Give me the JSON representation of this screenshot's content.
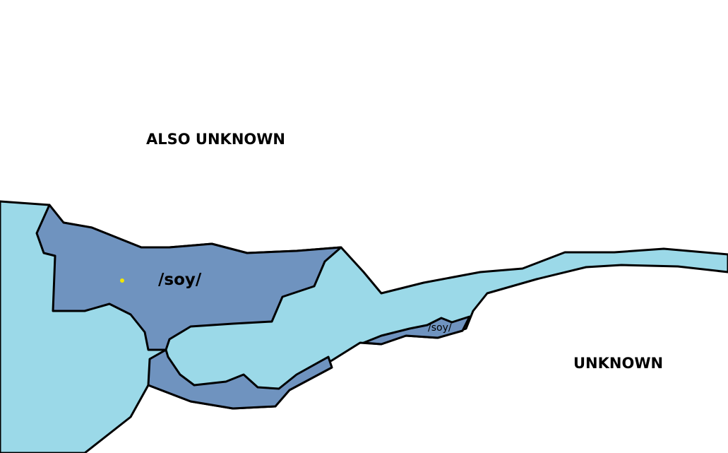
{
  "colors": {
    "sea": "#9bd9e8",
    "soy_region": "#6f93bf",
    "land_unknown": "#ffffff",
    "outline": "#000000",
    "marker": "#f2e600"
  },
  "labels": {
    "also_unknown": "ALSO UNKNOWN",
    "unknown": "UNKNOWN",
    "soy_main": "/soy/",
    "soy_small": "/soy/"
  },
  "marker_icon": "yellow-dot"
}
